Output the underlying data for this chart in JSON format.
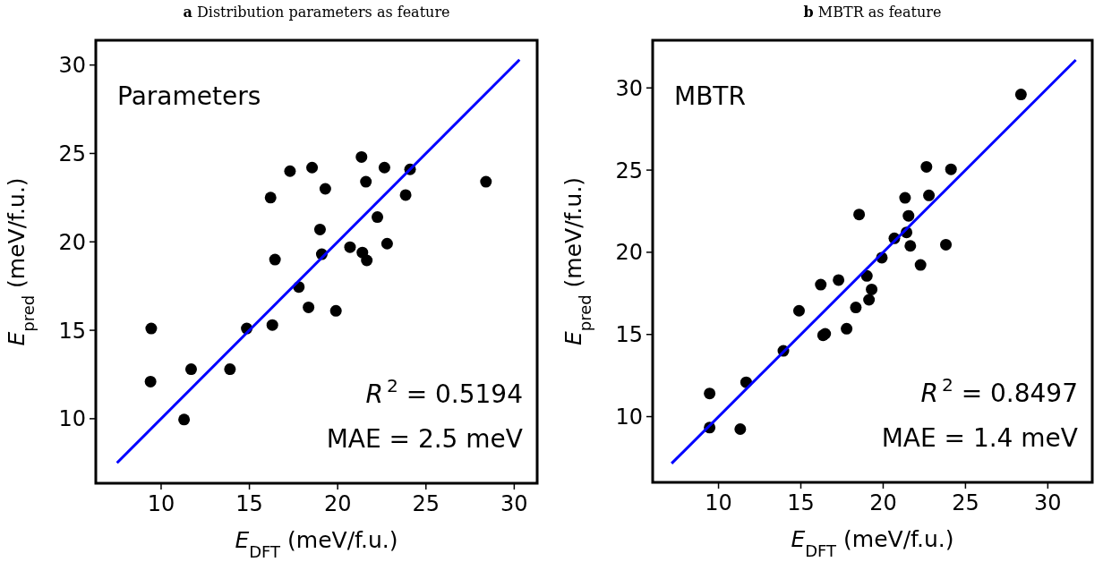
{
  "chart_data": [
    {
      "type": "scatter",
      "title": "a Distribution parameters as feature",
      "xlabel": "E$_{DFT}$ (meV/f.u.)",
      "ylabel": "E$_{pred}$ (meV/f.u.)",
      "annotations": [
        "Parameters",
        "R$^{2}$ = 0.5194",
        "MAE = 2.5 meV"
      ],
      "xlim": [
        6.3,
        31.3
      ],
      "ylim": [
        6.35,
        31.4
      ],
      "xticks": [
        10,
        15,
        20,
        25,
        30
      ],
      "yticks": [
        10,
        15,
        20,
        25,
        30
      ],
      "grid": false,
      "series": [
        {
          "color": "#000000",
          "marker": "circle",
          "x": [
            9.44,
            9.4,
            11.3,
            11.7,
            13.9,
            14.85,
            16.3,
            16.2,
            16.45,
            17.3,
            17.8,
            18.35,
            18.55,
            19.0,
            19.1,
            19.3,
            19.9,
            20.7,
            21.35,
            21.4,
            21.65,
            21.6,
            22.25,
            22.65,
            22.8,
            23.85,
            24.1,
            28.4
          ],
          "values": [
            15.1,
            12.1,
            9.95,
            12.8,
            12.8,
            15.1,
            15.3,
            22.5,
            19.0,
            24.0,
            17.45,
            16.3,
            24.2,
            20.7,
            19.3,
            23.0,
            16.1,
            19.7,
            24.8,
            19.4,
            18.95,
            23.4,
            21.4,
            24.2,
            19.9,
            22.65,
            24.1,
            23.4
          ]
        },
        {
          "type": "line",
          "color": "#0000ff",
          "marker": "none",
          "line_style": "solid",
          "x": [
            7.5,
            30.3
          ],
          "values": [
            7.5,
            30.3
          ]
        }
      ]
    },
    {
      "type": "scatter",
      "title": "b MBTR as feature",
      "xlabel": "E$_{DFT}$ (meV/f.u.)",
      "ylabel": "E$_{pred}$ (meV/f.u.)",
      "annotations": [
        "MBTR",
        "R$^{2}$ = 0.8497",
        "MAE = 1.4 meV"
      ],
      "xlim": [
        6.0,
        32.7
      ],
      "ylim": [
        6.0,
        32.9
      ],
      "xticks": [
        10,
        15,
        20,
        25,
        30
      ],
      "yticks": [
        10,
        15,
        20,
        25,
        30
      ],
      "grid": false,
      "series": [
        {
          "color": "#000000",
          "marker": "circle",
          "x": [
            9.46,
            9.46,
            11.32,
            11.68,
            13.94,
            14.89,
            16.21,
            16.35,
            16.48,
            17.29,
            17.78,
            18.34,
            18.54,
            19.01,
            19.14,
            19.3,
            19.92,
            20.68,
            21.33,
            21.42,
            21.54,
            21.65,
            22.27,
            22.63,
            22.78,
            23.81,
            24.12,
            28.37
          ],
          "values": [
            11.41,
            9.33,
            9.24,
            12.09,
            14.0,
            16.44,
            18.03,
            14.95,
            15.04,
            18.31,
            15.35,
            16.64,
            22.3,
            18.56,
            17.11,
            17.74,
            19.67,
            20.85,
            23.31,
            21.21,
            22.22,
            20.39,
            19.23,
            25.2,
            23.46,
            20.46,
            25.05,
            29.6
          ]
        },
        {
          "type": "line",
          "color": "#0000ff",
          "marker": "none",
          "line_style": "solid",
          "x": [
            7.15,
            31.7
          ],
          "values": [
            7.15,
            31.7
          ]
        }
      ]
    }
  ]
}
